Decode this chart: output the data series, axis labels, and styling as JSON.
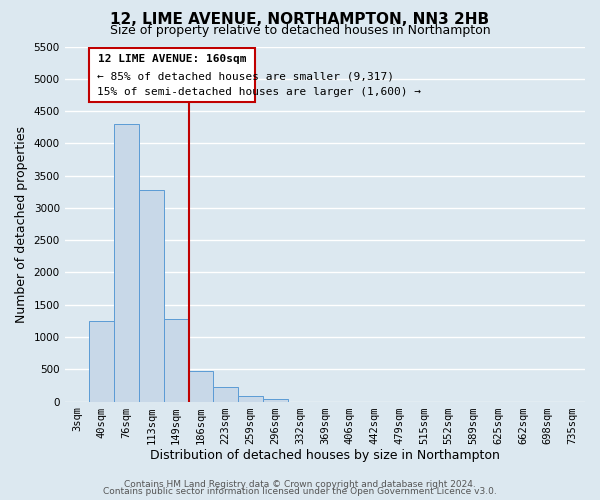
{
  "title": "12, LIME AVENUE, NORTHAMPTON, NN3 2HB",
  "subtitle": "Size of property relative to detached houses in Northampton",
  "xlabel": "Distribution of detached houses by size in Northampton",
  "ylabel": "Number of detached properties",
  "bar_labels": [
    "3sqm",
    "40sqm",
    "76sqm",
    "113sqm",
    "149sqm",
    "186sqm",
    "223sqm",
    "259sqm",
    "296sqm",
    "332sqm",
    "369sqm",
    "406sqm",
    "442sqm",
    "479sqm",
    "515sqm",
    "552sqm",
    "589sqm",
    "625sqm",
    "662sqm",
    "698sqm",
    "735sqm"
  ],
  "bar_values": [
    0,
    1250,
    4300,
    3280,
    1280,
    470,
    230,
    85,
    40,
    0,
    0,
    0,
    0,
    0,
    0,
    0,
    0,
    0,
    0,
    0,
    0
  ],
  "bar_color": "#c8d8e8",
  "bar_edge_color": "#5b9bd5",
  "ylim": [
    0,
    5500
  ],
  "yticks": [
    0,
    500,
    1000,
    1500,
    2000,
    2500,
    3000,
    3500,
    4000,
    4500,
    5000,
    5500
  ],
  "vline_pos": 4.5,
  "vline_color": "#c00000",
  "annotation_title": "12 LIME AVENUE: 160sqm",
  "annotation_line1": "← 85% of detached houses are smaller (9,317)",
  "annotation_line2": "15% of semi-detached houses are larger (1,600) →",
  "annotation_box_color": "#c00000",
  "footer_line1": "Contains HM Land Registry data © Crown copyright and database right 2024.",
  "footer_line2": "Contains public sector information licensed under the Open Government Licence v3.0.",
  "background_color": "#dce8f0",
  "grid_color": "#ffffff",
  "title_fontsize": 11,
  "subtitle_fontsize": 9,
  "axis_label_fontsize": 9,
  "tick_fontsize": 7.5,
  "annotation_fontsize": 8,
  "footer_fontsize": 6.5
}
